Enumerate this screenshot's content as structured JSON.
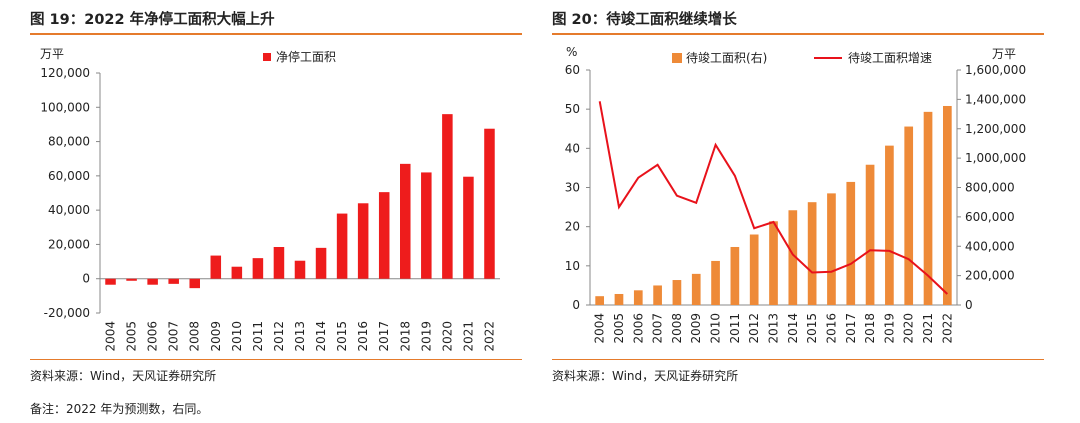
{
  "charts": {
    "left": {
      "title": "图 19：2022 年净停工面积大幅上升",
      "source": "资料来源：Wind，天风证券研究所"
    },
    "right": {
      "title": "图 20：待竣工面积继续增长",
      "source": "资料来源：Wind，天风证券研究所"
    }
  },
  "footnote": "备注：2022 年为预测数，右同。",
  "colors": {
    "accent_rule": "#e57b2c",
    "bar_red": "#ee1c1c",
    "bar_orange": "#ee8a38",
    "line_red": "#e8121b"
  },
  "chart_data": [
    {
      "type": "bar",
      "ylabel": "万平",
      "ylim": [
        -20000,
        120000
      ],
      "yticks": [
        "-20,000",
        "0",
        "20,000",
        "40,000",
        "60,000",
        "80,000",
        "100,000",
        "120,000"
      ],
      "ytick_values": [
        -20000,
        0,
        20000,
        40000,
        60000,
        80000,
        100000,
        120000
      ],
      "categories": [
        "2004",
        "2005",
        "2006",
        "2007",
        "2008",
        "2009",
        "2010",
        "2011",
        "2012",
        "2013",
        "2014",
        "2015",
        "2016",
        "2017",
        "2018",
        "2019",
        "2020",
        "2021",
        "2022"
      ],
      "series": [
        {
          "name": "净停工面积",
          "values": [
            -3500,
            -1200,
            -3500,
            -3000,
            -5500,
            13500,
            7000,
            12000,
            18500,
            10500,
            18000,
            38000,
            44000,
            50500,
            67000,
            62000,
            96000,
            59500,
            87500
          ]
        }
      ],
      "legend": "top-center"
    },
    {
      "type": "bar+line",
      "ylabel_left": "%",
      "ylabel_right": "万平",
      "ylim_left": [
        0,
        60
      ],
      "ylim_right": [
        0,
        1600000
      ],
      "yticks_left": [
        "0",
        "10",
        "20",
        "30",
        "40",
        "50",
        "60"
      ],
      "ytick_values_left": [
        0,
        10,
        20,
        30,
        40,
        50,
        60
      ],
      "yticks_right": [
        "0",
        "200,000",
        "400,000",
        "600,000",
        "800,000",
        "1,000,000",
        "1,200,000",
        "1,400,000",
        "1,600,000"
      ],
      "ytick_values_right": [
        0,
        200000,
        400000,
        600000,
        800000,
        1000000,
        1200000,
        1400000,
        1600000
      ],
      "categories": [
        "2004",
        "2005",
        "2006",
        "2007",
        "2008",
        "2009",
        "2010",
        "2011",
        "2012",
        "2013",
        "2014",
        "2015",
        "2016",
        "2017",
        "2018",
        "2019",
        "2020",
        "2021",
        "2022"
      ],
      "series": [
        {
          "name": "待竣工面积(右)",
          "type": "bar",
          "axis": "right",
          "values": [
            60000,
            75000,
            100000,
            133000,
            170000,
            212000,
            300000,
            395000,
            480000,
            570000,
            645000,
            700000,
            760000,
            838000,
            955000,
            1085000,
            1215000,
            1315000,
            1355000
          ]
        },
        {
          "name": "待竣工面积增速",
          "type": "line",
          "axis": "left",
          "values": [
            52,
            25,
            32.5,
            35.8,
            27.9,
            26.1,
            40.9,
            33,
            19.6,
            21.2,
            12.9,
            8.3,
            8.5,
            10.5,
            14,
            13.8,
            11.7,
            7.5,
            2.8
          ]
        }
      ],
      "legend": "top-center"
    }
  ]
}
